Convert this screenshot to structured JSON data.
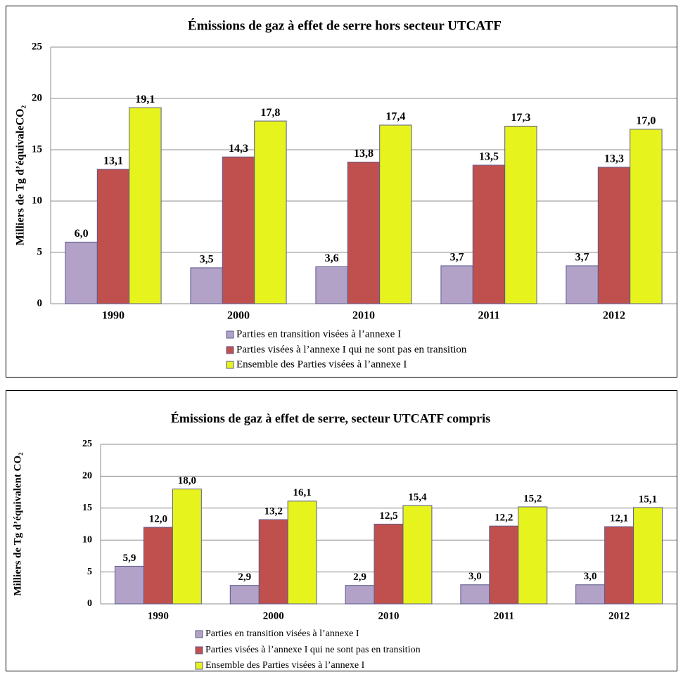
{
  "chart_data": [
    {
      "type": "bar",
      "title": "Émissions de gaz à effet de serre hors secteur UTCATF",
      "y_label": "Milliers de Tg d’équivaleCO₂",
      "categories": [
        "1990",
        "2000",
        "2010",
        "2011",
        "2012"
      ],
      "series": [
        {
          "name": "Parties en transition visées à l’annexe I",
          "color": "#b3a2c7",
          "values": [
            6.0,
            3.5,
            3.6,
            3.7,
            3.7
          ],
          "value_labels": [
            "6,0",
            "3,5",
            "3,6",
            "3,7",
            "3,7"
          ]
        },
        {
          "name": "Parties visées à l’annexe I qui ne sont pas en transition",
          "color": "#c0504d",
          "values": [
            13.1,
            14.3,
            13.8,
            13.5,
            13.3
          ],
          "value_labels": [
            "13,1",
            "14,3",
            "13,8",
            "13,5",
            "13,3"
          ]
        },
        {
          "name": "Ensemble des Parties visées à l’annexe I",
          "color": "#e6f31c",
          "values": [
            19.1,
            17.8,
            17.4,
            17.3,
            17.0
          ],
          "value_labels": [
            "19,1",
            "17,8",
            "17,4",
            "17,3",
            "17,0"
          ]
        }
      ],
      "ylim": [
        0,
        25
      ],
      "yticks": [
        0,
        5,
        10,
        15,
        20,
        25
      ],
      "grid": true,
      "legend": "bottom"
    },
    {
      "type": "bar",
      "title": "Émissions de gaz à effet de serre, secteur UTCATF compris",
      "y_label": "Milliers de Tg d’équivalent CO₂",
      "categories": [
        "1990",
        "2000",
        "2010",
        "2011",
        "2012"
      ],
      "series": [
        {
          "name": "Parties en transition visées à l’annexe I",
          "color": "#b3a2c7",
          "values": [
            5.9,
            2.9,
            2.9,
            3.0,
            3.0
          ],
          "value_labels": [
            "5,9",
            "2,9",
            "2,9",
            "3,0",
            "3,0"
          ]
        },
        {
          "name": "Parties visées à l’annexe I qui ne sont pas en transition",
          "color": "#c0504d",
          "values": [
            12.0,
            13.2,
            12.5,
            12.2,
            12.1
          ],
          "value_labels": [
            "12,0",
            "13,2",
            "12,5",
            "12,2",
            "12,1"
          ]
        },
        {
          "name": "Ensemble des Parties visées à l’annexe I",
          "color": "#e6f31c",
          "values": [
            18.0,
            16.1,
            15.4,
            15.2,
            15.1
          ],
          "value_labels": [
            "18,0",
            "16,1",
            "15,4",
            "15,2",
            "15,1"
          ]
        }
      ],
      "ylim": [
        0,
        25
      ],
      "yticks": [
        0,
        5,
        10,
        15,
        20,
        25
      ],
      "grid": true,
      "legend": "bottom"
    }
  ]
}
